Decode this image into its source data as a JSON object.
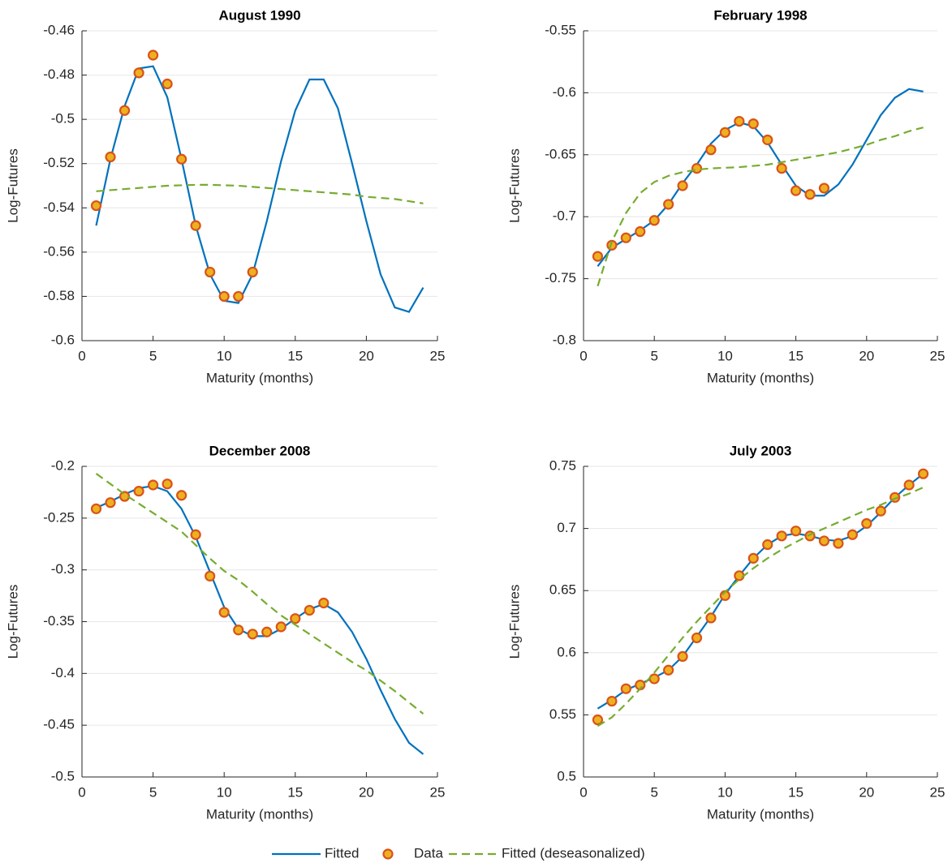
{
  "chart_data": [
    {
      "type": "line",
      "title": "August 1990",
      "xlabel": "Maturity (months)",
      "ylabel": "Log-Futures",
      "xlim": [
        0,
        25
      ],
      "xticks": [
        0,
        5,
        10,
        15,
        20,
        25
      ],
      "ylim": [
        -0.6,
        -0.46
      ],
      "yticks": [
        -0.6,
        -0.58,
        -0.56,
        -0.54,
        -0.52,
        -0.5,
        -0.48,
        -0.46
      ],
      "grid": true,
      "series": [
        {
          "name": "Fitted",
          "color": "#0072bd",
          "style": "solid",
          "x": [
            1,
            2,
            3,
            4,
            5,
            6,
            7,
            8,
            9,
            10,
            11,
            12,
            13,
            14,
            15,
            16,
            17,
            18,
            19,
            20,
            21,
            22,
            23,
            24
          ],
          "values": [
            -0.548,
            -0.518,
            -0.494,
            -0.477,
            -0.476,
            -0.49,
            -0.518,
            -0.548,
            -0.57,
            -0.582,
            -0.583,
            -0.57,
            -0.546,
            -0.519,
            -0.496,
            -0.482,
            -0.482,
            -0.495,
            -0.52,
            -0.546,
            -0.57,
            -0.585,
            -0.587,
            -0.576
          ]
        },
        {
          "name": "Data",
          "color": "#edb120",
          "edge": "#d95319",
          "style": "marker",
          "x": [
            1,
            2,
            3,
            4,
            5,
            6,
            7,
            8,
            9,
            10,
            11,
            12
          ],
          "values": [
            -0.539,
            -0.517,
            -0.496,
            -0.479,
            -0.471,
            -0.484,
            -0.518,
            -0.548,
            -0.569,
            -0.58,
            -0.58,
            -0.569
          ]
        },
        {
          "name": "Fitted (deseasonalized)",
          "color": "#77ac30",
          "style": "dashed",
          "x": [
            1,
            2,
            3,
            4,
            5,
            6,
            7,
            8,
            9,
            10,
            11,
            12,
            13,
            14,
            15,
            16,
            17,
            18,
            19,
            20,
            21,
            22,
            23,
            24
          ],
          "values": [
            -0.5325,
            -0.532,
            -0.5315,
            -0.531,
            -0.5305,
            -0.53,
            -0.5298,
            -0.5296,
            -0.5296,
            -0.5298,
            -0.53,
            -0.5305,
            -0.531,
            -0.5315,
            -0.532,
            -0.5325,
            -0.533,
            -0.5335,
            -0.534,
            -0.535,
            -0.5355,
            -0.536,
            -0.537,
            -0.538
          ]
        }
      ]
    },
    {
      "type": "line",
      "title": "February 1998",
      "xlabel": "Maturity (months)",
      "ylabel": "Log-Futures",
      "xlim": [
        0,
        25
      ],
      "xticks": [
        0,
        5,
        10,
        15,
        20,
        25
      ],
      "ylim": [
        -0.8,
        -0.55
      ],
      "yticks": [
        -0.8,
        -0.75,
        -0.7,
        -0.65,
        -0.6,
        -0.55
      ],
      "grid": true,
      "series": [
        {
          "color": "#0072bd",
          "style": "solid",
          "x": [
            1,
            2,
            3,
            4,
            5,
            6,
            7,
            8,
            9,
            10,
            11,
            12,
            13,
            14,
            15,
            16,
            17,
            18,
            19,
            20,
            21,
            22,
            23,
            24
          ],
          "values": [
            -0.74,
            -0.725,
            -0.718,
            -0.711,
            -0.703,
            -0.69,
            -0.673,
            -0.658,
            -0.641,
            -0.63,
            -0.624,
            -0.627,
            -0.64,
            -0.658,
            -0.675,
            -0.683,
            -0.683,
            -0.674,
            -0.658,
            -0.638,
            -0.618,
            -0.604,
            -0.597,
            -0.599
          ]
        },
        {
          "color": "#edb120",
          "edge": "#d95319",
          "style": "marker",
          "x": [
            1,
            2,
            3,
            4,
            5,
            6,
            7,
            8,
            9,
            10,
            11,
            12,
            13,
            14,
            15,
            16,
            17
          ],
          "values": [
            -0.732,
            -0.723,
            -0.717,
            -0.712,
            -0.703,
            -0.69,
            -0.675,
            -0.661,
            -0.646,
            -0.632,
            -0.623,
            -0.625,
            -0.638,
            -0.661,
            -0.679,
            -0.682,
            -0.677
          ]
        },
        {
          "color": "#77ac30",
          "style": "dashed",
          "x": [
            1,
            2,
            3,
            4,
            5,
            6,
            7,
            8,
            9,
            10,
            11,
            12,
            13,
            14,
            15,
            16,
            17,
            18,
            19,
            20,
            21,
            22,
            23,
            24
          ],
          "values": [
            -0.756,
            -0.72,
            -0.697,
            -0.681,
            -0.672,
            -0.667,
            -0.664,
            -0.662,
            -0.661,
            -0.6605,
            -0.66,
            -0.659,
            -0.658,
            -0.656,
            -0.654,
            -0.652,
            -0.65,
            -0.648,
            -0.645,
            -0.642,
            -0.638,
            -0.635,
            -0.631,
            -0.628
          ]
        }
      ]
    },
    {
      "type": "line",
      "title": "December 2008",
      "xlabel": "Maturity (months)",
      "ylabel": "Log-Futures",
      "xlim": [
        0,
        25
      ],
      "xticks": [
        0,
        5,
        10,
        15,
        20,
        25
      ],
      "ylim": [
        -0.5,
        -0.2
      ],
      "yticks": [
        -0.5,
        -0.45,
        -0.4,
        -0.35,
        -0.3,
        -0.25,
        -0.2
      ],
      "grid": true,
      "series": [
        {
          "color": "#0072bd",
          "style": "solid",
          "x": [
            1,
            2,
            3,
            4,
            5,
            6,
            7,
            8,
            9,
            10,
            11,
            12,
            13,
            14,
            15,
            16,
            17,
            18,
            19,
            20,
            21,
            22,
            23,
            24
          ],
          "values": [
            -0.24,
            -0.234,
            -0.227,
            -0.221,
            -0.219,
            -0.224,
            -0.241,
            -0.268,
            -0.302,
            -0.336,
            -0.357,
            -0.364,
            -0.364,
            -0.357,
            -0.347,
            -0.338,
            -0.333,
            -0.341,
            -0.36,
            -0.386,
            -0.416,
            -0.444,
            -0.467,
            -0.478
          ]
        },
        {
          "color": "#edb120",
          "edge": "#d95319",
          "style": "marker",
          "x": [
            1,
            2,
            3,
            4,
            5,
            6,
            7,
            8,
            9,
            10,
            11,
            12,
            13,
            14,
            15,
            16,
            17
          ],
          "values": [
            -0.241,
            -0.235,
            -0.229,
            -0.224,
            -0.218,
            -0.217,
            -0.228,
            -0.266,
            -0.306,
            -0.341,
            -0.358,
            -0.362,
            -0.36,
            -0.355,
            -0.347,
            -0.339,
            -0.332
          ]
        },
        {
          "color": "#77ac30",
          "style": "dashed",
          "x": [
            1,
            2,
            3,
            4,
            5,
            6,
            7,
            8,
            9,
            10,
            11,
            12,
            13,
            14,
            15,
            16,
            17,
            18,
            19,
            20,
            21,
            22,
            23,
            24
          ],
          "values": [
            -0.207,
            -0.217,
            -0.227,
            -0.236,
            -0.245,
            -0.254,
            -0.263,
            -0.276,
            -0.289,
            -0.301,
            -0.31,
            -0.321,
            -0.333,
            -0.344,
            -0.353,
            -0.362,
            -0.371,
            -0.38,
            -0.389,
            -0.397,
            -0.407,
            -0.417,
            -0.428,
            -0.439
          ]
        }
      ]
    },
    {
      "type": "line",
      "title": "July 2003",
      "xlabel": "Maturity (months)",
      "ylabel": "Log-Futures",
      "xlim": [
        0,
        25
      ],
      "xticks": [
        0,
        5,
        10,
        15,
        20,
        25
      ],
      "ylim": [
        0.5,
        0.75
      ],
      "yticks": [
        0.5,
        0.55,
        0.6,
        0.65,
        0.7,
        0.75
      ],
      "grid": true,
      "series": [
        {
          "color": "#0072bd",
          "style": "solid",
          "x": [
            1,
            2,
            3,
            4,
            5,
            6,
            7,
            8,
            9,
            10,
            11,
            12,
            13,
            14,
            15,
            16,
            17,
            18,
            19,
            20,
            21,
            22,
            23,
            24
          ],
          "values": [
            0.555,
            0.562,
            0.57,
            0.575,
            0.58,
            0.586,
            0.597,
            0.613,
            0.629,
            0.647,
            0.662,
            0.676,
            0.687,
            0.694,
            0.696,
            0.694,
            0.691,
            0.69,
            0.694,
            0.702,
            0.713,
            0.725,
            0.735,
            0.744
          ]
        },
        {
          "color": "#edb120",
          "edge": "#d95319",
          "style": "marker",
          "x": [
            1,
            2,
            3,
            4,
            5,
            6,
            7,
            8,
            9,
            10,
            11,
            12,
            13,
            14,
            15,
            16,
            17,
            18,
            19,
            20,
            21,
            22,
            23,
            24
          ],
          "values": [
            0.546,
            0.561,
            0.571,
            0.574,
            0.579,
            0.586,
            0.597,
            0.612,
            0.628,
            0.646,
            0.662,
            0.676,
            0.687,
            0.694,
            0.698,
            0.694,
            0.69,
            0.688,
            0.695,
            0.704,
            0.714,
            0.725,
            0.735,
            0.744
          ]
        },
        {
          "color": "#77ac30",
          "style": "dashed",
          "x": [
            1,
            2,
            3,
            4,
            5,
            6,
            7,
            8,
            9,
            10,
            11,
            12,
            13,
            14,
            15,
            16,
            17,
            18,
            19,
            20,
            21,
            22,
            23,
            24
          ],
          "values": [
            0.541,
            0.548,
            0.559,
            0.571,
            0.584,
            0.598,
            0.612,
            0.625,
            0.637,
            0.649,
            0.659,
            0.668,
            0.676,
            0.683,
            0.689,
            0.695,
            0.7,
            0.705,
            0.71,
            0.715,
            0.719,
            0.724,
            0.728,
            0.733
          ]
        }
      ]
    }
  ]
}
